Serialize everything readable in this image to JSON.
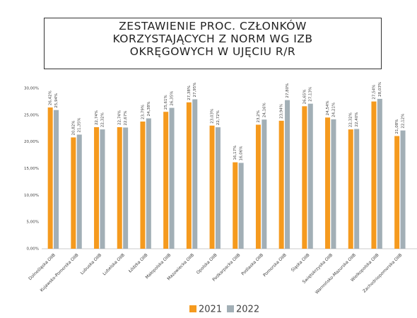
{
  "chart_data": {
    "type": "bar",
    "title": "ZESTAWIENIE PROC. CZŁONKÓW KORZYSTAJĄCYCH Z NORM WG IZB OKRĘGOWYCH W UJĘCIU R/R",
    "categories": [
      "Dolnośląska OIIB",
      "Kujawsko-Pomorska OIIB",
      "Lubuska OIIB",
      "Lubelska OIIB",
      "Łódzka OIIB",
      "Małopolska OIIB",
      "Mazowiecka OIIB",
      "Opolska OIIB",
      "Podkarpacka OIIB",
      "Podlaska OIIB",
      "Pomorska OIIB",
      "Śląska OIIB",
      "Świętokrzyska OIIB",
      "Warmińsko-Mazurska OIIB",
      "Wielkopolska OIIB",
      "Zachodniopomorska OIIB"
    ],
    "series": [
      {
        "name": "2021",
        "color": "#f59a1e",
        "values": [
          26.42,
          20.82,
          22.74,
          22.74,
          23.79,
          25.61,
          27.38,
          23.03,
          16.17,
          23.2,
          23.94,
          26.65,
          24.54,
          22.32,
          27.54,
          21.08
        ],
        "value_labels": [
          "26,42%",
          "20,82%",
          "22,74%",
          "22,74%",
          "23,79%",
          "25,61%",
          "27,38%",
          "23,03%",
          "16,17%",
          "23,2%",
          "23,94%",
          "26,65%",
          "24,54%",
          "22,32%",
          "27,54%",
          "21,08%"
        ]
      },
      {
        "name": "2022",
        "color": "#a2afb6",
        "values": [
          25.94,
          21.35,
          22.32,
          22.67,
          24.38,
          26.35,
          27.95,
          22.72,
          16.06,
          24.16,
          27.8,
          27.13,
          24.21,
          22.4,
          28.03,
          22.12
        ],
        "value_labels": [
          "25,94%",
          "21,35%",
          "22,32%",
          "22,67%",
          "24,38%",
          "26,35%",
          "27,95%",
          "22,72%",
          "16,06%",
          "24,16%",
          "27,80%",
          "27,13%",
          "24,21%",
          "22,40%",
          "28,03%",
          "22,12%"
        ]
      }
    ],
    "ylim": [
      0,
      30
    ],
    "yticks": [
      {
        "value": 0,
        "label": "0,00%"
      },
      {
        "value": 5,
        "label": "5,00%"
      },
      {
        "value": 10,
        "label": "10,00%"
      },
      {
        "value": 15,
        "label": "15,00%"
      },
      {
        "value": 20,
        "label": "20,00%"
      },
      {
        "value": 25,
        "label": "25,00%"
      },
      {
        "value": 30,
        "label": "30,00%"
      }
    ],
    "grid": false,
    "legend": "bottom"
  }
}
